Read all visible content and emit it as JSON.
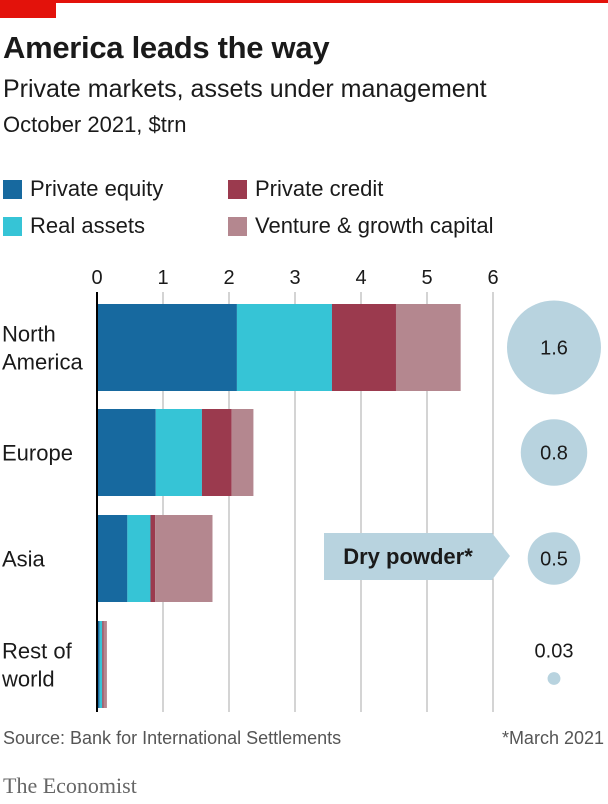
{
  "header": {
    "title": "America leads the way",
    "subtitle": "Private markets, assets under management",
    "unit": "October 2021, $trn"
  },
  "colors": {
    "private_equity": "#17699f",
    "real_assets": "#36c4d6",
    "private_credit": "#9b3a4e",
    "venture_growth": "#b4878f",
    "bubble": "#b8d3df",
    "callout": "#b8d3df",
    "brand_red": "#e3120b"
  },
  "chart_data": {
    "type": "bar",
    "orientation": "horizontal",
    "stacked": true,
    "categories": [
      "North America",
      "Europe",
      "Asia",
      "Rest of world"
    ],
    "series": [
      {
        "name": "Private equity",
        "values": [
          2.12,
          0.89,
          0.46,
          0.04
        ]
      },
      {
        "name": "Real assets",
        "values": [
          1.44,
          0.7,
          0.35,
          0.04
        ]
      },
      {
        "name": "Private credit",
        "values": [
          0.97,
          0.45,
          0.07,
          0.02
        ]
      },
      {
        "name": "Venture & growth capital",
        "values": [
          0.98,
          0.33,
          0.87,
          0.05
        ]
      }
    ],
    "xlim": [
      0,
      6
    ],
    "xticks": [
      0,
      1,
      2,
      3,
      4,
      5,
      6
    ],
    "grid": true,
    "legend": "top",
    "dry_powder": {
      "label": "Dry powder*",
      "values": [
        1.6,
        0.8,
        0.5,
        0.03
      ],
      "labels": [
        "1.6",
        "0.8",
        "0.5",
        "0.03"
      ]
    }
  },
  "footer": {
    "source": "Source: Bank for International Settlements",
    "note": "*March 2021",
    "logo": "The Economist"
  }
}
